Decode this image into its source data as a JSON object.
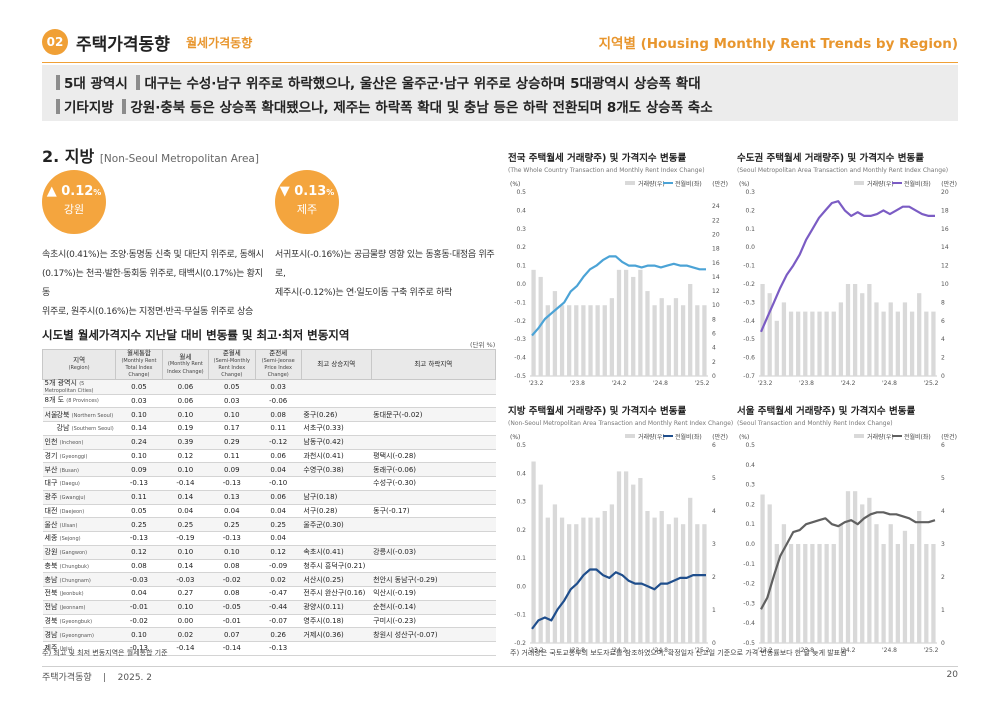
{
  "header": {
    "num": "02",
    "title": "주택가격동향",
    "subtitle": "월세가격동향",
    "right": "지역별 (Housing Monthly Rent Trends by Region)"
  },
  "summary": {
    "line1_label": "5대 광역시",
    "line1_text": "대구는 수성·남구 위주로 하락했으나, 울산은 울주군·남구 위주로 상승하며 5대광역시 상승폭 확대",
    "line2_label": "기타지방",
    "line2_text": "강원·충북 등은 상승폭 확대됐으나, 제주는 하락폭 확대 및 충남 등은 하락 전환되며 8개도 상승폭 축소"
  },
  "section": {
    "title": "2. 지방",
    "en": "[Non-Seoul Metropolitan Area]"
  },
  "highlight1": {
    "arrow": "▲",
    "value": "0.12",
    "unit": "%",
    "region": "강원",
    "desc": [
      "속초시(0.41%)는 조양·동명동 신축 및 대단지 위주로, 동해시",
      "(0.17%)는 천곡·발한·동회동 위주로, 태백시(0.17%)는 황지동",
      "위주로, 원주시(0.16%)는 지정면·반곡·무실동 위주로 상승"
    ]
  },
  "highlight2": {
    "arrow": "▼",
    "value": "0.13",
    "unit": "%",
    "region": "제주",
    "desc": [
      "서귀포시(-0.16%)는 공급물량 영향 있는 동홍동·대정읍 위주로,",
      "제주시(-0.12%)는 연·일도이동 구축 위주로 하락"
    ]
  },
  "colors": {
    "accent": "#f0a036",
    "bar": "#d9d9d9",
    "whole": "#4ba3d6",
    "capital": "#7b5cc4",
    "nonseoul": "#1f4e8c",
    "seoul": "#606060"
  },
  "table": {
    "title": "시도별 월세가격지수 지난달 대비 변동률 및 최고·최저 변동지역",
    "unit": "(단위 %)",
    "headers": [
      {
        "ko": "지역",
        "en": "(Region)"
      },
      {
        "ko": "월세통합",
        "en": "(Monthly Rent Total Index Change)"
      },
      {
        "ko": "월세",
        "en": "(Monthly Rent Index Change)"
      },
      {
        "ko": "준월세",
        "en": "(Semi-Monthly Rent Index Change)"
      },
      {
        "ko": "준전세",
        "en": "(Semi-Jeonse Price Index Change)"
      },
      {
        "ko": "최고 상승지역",
        "en": ""
      },
      {
        "ko": "최고 하락지역",
        "en": ""
      }
    ],
    "rows": [
      {
        "region": "5개 광역시",
        "en": "(5 Metropolitan Cities)",
        "v": [
          "0.05",
          "0.06",
          "0.05",
          "0.03"
        ],
        "up": "",
        "down": ""
      },
      {
        "region": "8개 도",
        "en": "(8 Provinces)",
        "v": [
          "0.03",
          "0.06",
          "0.03",
          "-0.06"
        ],
        "up": "",
        "down": ""
      },
      {
        "region": "강북",
        "en": "(Northern Seoul)",
        "v": [
          "0.10",
          "0.10",
          "0.10",
          "0.08"
        ],
        "up": "중구(0.26)",
        "down": "동대문구(-0.02)"
      },
      {
        "region": "강남",
        "en": "(Southern Seoul)",
        "v": [
          "0.14",
          "0.19",
          "0.17",
          "0.11"
        ],
        "up": "서초구(0.33)",
        "down": ""
      },
      {
        "region": "인천",
        "en": "(Incheon)",
        "v": [
          "0.24",
          "0.39",
          "0.29",
          "-0.12"
        ],
        "up": "남동구(0.42)",
        "down": ""
      },
      {
        "region": "경기",
        "en": "(Gyeonggi)",
        "v": [
          "0.10",
          "0.12",
          "0.11",
          "0.06"
        ],
        "up": "과천시(0.41)",
        "down": "평택시(-0.28)"
      },
      {
        "region": "부산",
        "en": "(Busan)",
        "v": [
          "0.09",
          "0.10",
          "0.09",
          "0.04"
        ],
        "up": "수영구(0.38)",
        "down": "동래구(-0.06)"
      },
      {
        "region": "대구",
        "en": "(Daegu)",
        "v": [
          "-0.13",
          "-0.14",
          "-0.13",
          "-0.10"
        ],
        "up": "",
        "down": "수성구(-0.30)"
      },
      {
        "region": "광주",
        "en": "(Gwangju)",
        "v": [
          "0.11",
          "0.14",
          "0.13",
          "0.06"
        ],
        "up": "남구(0.18)",
        "down": ""
      },
      {
        "region": "대전",
        "en": "(Daejeon)",
        "v": [
          "0.05",
          "0.04",
          "0.04",
          "0.04"
        ],
        "up": "서구(0.28)",
        "down": "동구(-0.17)"
      },
      {
        "region": "울산",
        "en": "(Ulsan)",
        "v": [
          "0.25",
          "0.25",
          "0.25",
          "0.25"
        ],
        "up": "울주군(0.30)",
        "down": ""
      },
      {
        "region": "세종",
        "en": "(Sejong)",
        "v": [
          "-0.13",
          "-0.19",
          "-0.13",
          "0.04"
        ],
        "up": "",
        "down": ""
      },
      {
        "region": "강원",
        "en": "(Gangwon)",
        "v": [
          "0.12",
          "0.10",
          "0.10",
          "0.12"
        ],
        "up": "속초시(0.41)",
        "down": "강릉시(-0.03)"
      },
      {
        "region": "충북",
        "en": "(Chungbuk)",
        "v": [
          "0.08",
          "0.14",
          "0.08",
          "-0.09"
        ],
        "up": "청주시 흥덕구(0.21)",
        "down": ""
      },
      {
        "region": "충남",
        "en": "(Chungnam)",
        "v": [
          "-0.03",
          "-0.03",
          "-0.02",
          "0.02"
        ],
        "up": "서산시(0.25)",
        "down": "천안시 동남구(-0.29)"
      },
      {
        "region": "전북",
        "en": "(Jeonbuk)",
        "v": [
          "0.04",
          "0.27",
          "0.08",
          "-0.47"
        ],
        "up": "전주시 완산구(0.16)",
        "down": "익산시(-0.19)"
      },
      {
        "region": "전남",
        "en": "(Jeonnam)",
        "v": [
          "-0.01",
          "0.10",
          "-0.05",
          "-0.44"
        ],
        "up": "광양시(0.11)",
        "down": "순천시(-0.14)"
      },
      {
        "region": "경북",
        "en": "(Gyeongbuk)",
        "v": [
          "-0.02",
          "0.00",
          "-0.01",
          "-0.07"
        ],
        "up": "영주시(0.18)",
        "down": "구미시(-0.23)"
      },
      {
        "region": "경남",
        "en": "(Gyeongnam)",
        "v": [
          "0.10",
          "0.02",
          "0.07",
          "0.26"
        ],
        "up": "거제시(0.36)",
        "down": "창원시 성산구(-0.07)"
      },
      {
        "region": "제주",
        "en": "(Jeju)",
        "v": [
          "-0.13",
          "-0.14",
          "-0.14",
          "-0.13"
        ],
        "up": "",
        "down": ""
      }
    ],
    "seoul_label": "서울",
    "note": "주) 최고 및 최저 변동지역은 월세통합 기준"
  },
  "chart_note": "주) 거래량은 국토교통부의 보도자료를 참조하였으며, 확정일자 신고일 기준으로 가격 변동률보다 한 달 늦게 발표됨",
  "footer": {
    "left": "주택가격동향",
    "sep": "|",
    "date": "2025. 2",
    "page": "20"
  },
  "chart_data": [
    {
      "type": "bar+line",
      "title": "전국 주택월세 거래량주) 및 가격지수 변동률",
      "subtitle": "(The Whole Country Transaction and Monthly Rent Index Change)",
      "legend": [
        "거래량(우)",
        "전월비(좌)"
      ],
      "ylabel_left": "(%)",
      "ylabel_right": "(만건)",
      "ylim": [
        -0.5,
        0.5
      ],
      "yticks": [
        "0.5",
        "0.4",
        "0.3",
        "0.2",
        "0.1",
        "0.0",
        "-0.1",
        "-0.2",
        "-0.3",
        "-0.4",
        "-0.5"
      ],
      "y2lim": [
        0,
        26
      ],
      "y2ticks": [
        "24",
        "22",
        "20",
        "18",
        "16",
        "14",
        "12",
        "10",
        "8",
        "6",
        "4",
        "2",
        "0"
      ],
      "xticks": [
        "'23.2",
        "'23.8",
        "'24.2",
        "'24.8",
        "'25.2"
      ],
      "bars": [
        15,
        14,
        10,
        12,
        10,
        10,
        10,
        10,
        10,
        10,
        10,
        11,
        15,
        15,
        14,
        15,
        12,
        10,
        11,
        10,
        11,
        10,
        13,
        10,
        10
      ],
      "line": [
        -0.28,
        -0.24,
        -0.19,
        -0.16,
        -0.13,
        -0.1,
        -0.04,
        -0.01,
        0.04,
        0.08,
        0.1,
        0.13,
        0.15,
        0.15,
        0.12,
        0.1,
        0.1,
        0.09,
        0.1,
        0.1,
        0.09,
        0.1,
        0.11,
        0.1,
        0.1,
        0.09,
        0.08,
        0.08
      ]
    },
    {
      "type": "bar+line",
      "title": "수도권 주택월세 거래량주) 및 가격지수 변동률",
      "subtitle": "(Seoul Metropolitan Area Transaction and Monthly Rent Index Change)",
      "legend": [
        "거래량(우)",
        "전월비(좌)"
      ],
      "ylabel_left": "(%)",
      "ylabel_right": "(만건)",
      "ylim": [
        -0.7,
        0.3
      ],
      "yticks": [
        "0.3",
        "0.2",
        "0.1",
        "0.0",
        "-0.1",
        "-0.2",
        "-0.3",
        "-0.4",
        "-0.5",
        "-0.6",
        "-0.7"
      ],
      "y2lim": [
        0,
        20
      ],
      "y2ticks": [
        "20",
        "18",
        "16",
        "14",
        "12",
        "10",
        "8",
        "6",
        "4",
        "2",
        "0"
      ],
      "xticks": [
        "'23.2",
        "'23.8",
        "'24.2",
        "'24.8",
        "'25.2"
      ],
      "bars": [
        10,
        9,
        6,
        8,
        7,
        7,
        7,
        7,
        7,
        7,
        7,
        8,
        10,
        10,
        9,
        10,
        8,
        7,
        8,
        7,
        8,
        7,
        9,
        7,
        7
      ],
      "line": [
        -0.46,
        -0.38,
        -0.3,
        -0.22,
        -0.15,
        -0.1,
        -0.04,
        0.04,
        0.1,
        0.16,
        0.2,
        0.24,
        0.25,
        0.2,
        0.17,
        0.19,
        0.17,
        0.17,
        0.18,
        0.2,
        0.18,
        0.2,
        0.22,
        0.22,
        0.2,
        0.18,
        0.17,
        0.17
      ]
    },
    {
      "type": "bar+line",
      "title": "지방 주택월세 거래량주) 및 가격지수 변동률",
      "subtitle": "(Non-Seoul Metropolitan Area Transaction and Monthly Rent Index Change)",
      "legend": [
        "거래량(우)",
        "전월비(좌)"
      ],
      "ylabel_left": "(%)",
      "ylabel_right": "(만건)",
      "ylim": [
        -0.2,
        0.5
      ],
      "yticks": [
        "0.5",
        "0.4",
        "0.3",
        "0.2",
        "0.1",
        "0.0",
        "-0.1",
        "-0.2"
      ],
      "y2lim": [
        0,
        6
      ],
      "y2ticks": [
        "6",
        "5",
        "4",
        "3",
        "2",
        "1",
        "0"
      ],
      "xticks": [
        "'23.2",
        "'23.8",
        "'24.2",
        "'24.8",
        "'25.2"
      ],
      "bars": [
        5.5,
        4.8,
        3.8,
        4.2,
        3.8,
        3.6,
        3.6,
        3.8,
        3.8,
        3.8,
        4,
        4.2,
        5.2,
        5.2,
        4.8,
        5,
        4,
        3.8,
        4,
        3.6,
        3.8,
        3.6,
        4.4,
        3.6,
        3.6
      ],
      "line": [
        -0.15,
        -0.12,
        -0.11,
        -0.12,
        -0.08,
        -0.05,
        -0.01,
        0.01,
        0.04,
        0.06,
        0.06,
        0.04,
        0.03,
        0.05,
        0.04,
        0.02,
        0.01,
        0.01,
        0.0,
        -0.01,
        0.01,
        0.01,
        0.02,
        0.03,
        0.03,
        0.04,
        0.04,
        0.04
      ]
    },
    {
      "type": "bar+line",
      "title": "서울 주택월세 거래량주) 및 가격지수 변동률",
      "subtitle": "(Seoul Transaction and Monthly Rent Index Change)",
      "legend": [
        "거래량(우)",
        "전월비(좌)"
      ],
      "ylabel_left": "(%)",
      "ylabel_right": "(만건)",
      "ylim": [
        -0.5,
        0.5
      ],
      "yticks": [
        "0.5",
        "0.4",
        "0.3",
        "0.2",
        "0.1",
        "0.0",
        "-0.1",
        "-0.2",
        "-0.3",
        "-0.4",
        "-0.5"
      ],
      "y2lim": [
        0,
        6
      ],
      "y2ticks": [
        "6",
        "5",
        "4",
        "3",
        "2",
        "1",
        "0"
      ],
      "xticks": [
        "'23.2",
        "'23.8",
        "'24.2",
        "'24.8",
        "'25.2"
      ],
      "bars": [
        4.5,
        4.2,
        3,
        3.6,
        3,
        3,
        3,
        3,
        3,
        3,
        3,
        3.6,
        4.6,
        4.6,
        4.2,
        4.4,
        3.6,
        3,
        3.6,
        3,
        3.4,
        3,
        4,
        3,
        3
      ],
      "line": [
        -0.33,
        -0.27,
        -0.16,
        -0.06,
        0.0,
        0.06,
        0.07,
        0.1,
        0.11,
        0.12,
        0.13,
        0.1,
        0.09,
        0.11,
        0.12,
        0.1,
        0.13,
        0.15,
        0.16,
        0.16,
        0.15,
        0.15,
        0.14,
        0.13,
        0.11,
        0.11,
        0.11,
        0.12
      ]
    }
  ]
}
